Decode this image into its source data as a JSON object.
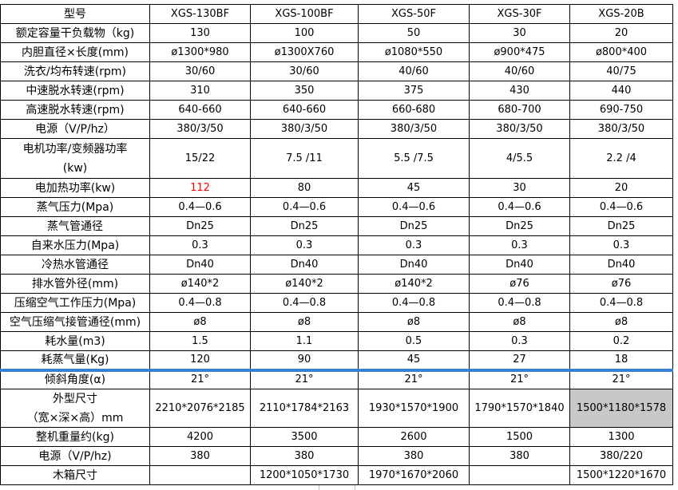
{
  "header": {
    "label": "型号",
    "models": [
      "XGS-130BF",
      "XGS-100BF",
      "XGS-50F",
      "XGS-30F",
      "XGS-20B"
    ]
  },
  "rows": [
    {
      "label": "额定容量干负载物（kg)",
      "values": [
        "130",
        "100",
        "50",
        "30",
        "20"
      ]
    },
    {
      "label": "内胆直径×长度(mm)",
      "values": [
        "ø1300*980",
        "ø1300X760",
        "ø1080*550",
        "ø900*475",
        "ø800*400"
      ]
    },
    {
      "label": "洗衣/均布转速(rpm)",
      "values": [
        "30/60",
        "30/60",
        "40/60",
        "40/60",
        "40/75"
      ]
    },
    {
      "label": "中速脱水转速(rpm)",
      "values": [
        "310",
        "350",
        "375",
        "430",
        "440"
      ]
    },
    {
      "label": "高速脱水转速(rpm)",
      "values": [
        "640-660",
        "640-660",
        "660-680",
        "680-700",
        "690-750"
      ]
    },
    {
      "label": "电源（V/P/hz）",
      "values": [
        "380/3/50",
        "380/3/50",
        "380/3/50",
        "380/3/50",
        "380/3/50"
      ]
    },
    {
      "label": "电机功率/变频器功率",
      "label2": "(kw)",
      "values": [
        "15/22",
        "7.5 /11",
        "5.5 /7.5",
        "4/5.5",
        "2.2 /4"
      ]
    },
    {
      "label": "电加热功率(kw)",
      "values": [
        "112",
        "80",
        "45",
        "30",
        "20"
      ]
    },
    {
      "label": "蒸气压力(Mpa)",
      "values": [
        "0.4—0.6",
        "0.4—0.6",
        "0.4—0.6",
        "0.4—0.6",
        "0.4—0.6"
      ]
    },
    {
      "label": "蒸气管通径",
      "values": [
        "Dn25",
        "Dn25",
        "Dn25",
        "Dn25",
        "Dn25"
      ]
    },
    {
      "label": "自来水压力(Mpa)",
      "values": [
        "0.3",
        "0.3",
        "0.3",
        "0.3",
        "0.3"
      ]
    },
    {
      "label": "冷热水管通径",
      "values": [
        "Dn40",
        "Dn40",
        "Dn40",
        "Dn40",
        "Dn40"
      ]
    },
    {
      "label": "排水管外径(mm)",
      "values": [
        "ø140*2",
        "ø140*2",
        "ø140*2",
        "ø76",
        "ø76"
      ]
    },
    {
      "label": "压缩空气工作压力(Mpa)",
      "values": [
        "0.4—0.8",
        "0.4—0.8",
        "0.4—0.8",
        "0.4—0.8",
        "0.4—0.8"
      ]
    },
    {
      "label": "空气压缩气接管通径(mm)",
      "values": [
        "ø8",
        "ø8",
        "ø8",
        "ø8",
        "ø8"
      ]
    },
    {
      "label": "耗水量(m3)",
      "values": [
        "1.5",
        "1.1",
        "0.5",
        "0.3",
        "0.2"
      ]
    },
    {
      "label": "耗蒸气量(Kg)",
      "values": [
        "120",
        "90",
        "45",
        "27",
        "18"
      ]
    },
    {
      "label": "倾斜角度(α)",
      "values": [
        "21°",
        "21°",
        "21°",
        "21°",
        "21°"
      ]
    },
    {
      "label": "外型尺寸",
      "label2": "（宽×深×高）mm",
      "values": [
        "2210*2076*2185",
        "2110*1784*2163",
        "1930*1570*1900",
        "1790*1570*1840",
        "1500*1180*1578"
      ]
    },
    {
      "label": "整机重量约(kg)",
      "values": [
        "4200",
        "3500",
        "2600",
        "1500",
        "1300"
      ]
    },
    {
      "label": "电源（V/P/hz)",
      "values": [
        "380",
        "380",
        "380",
        "380",
        "380/220"
      ]
    },
    {
      "label": "木箱尺寸",
      "values": [
        "",
        "1200*1050*1730",
        "1970*1670*2060",
        "",
        "1500*1220*1670"
      ]
    }
  ],
  "colors": {
    "highlight_text": "#ff0000",
    "separator": "#3a7fd5",
    "highlight_cell": "#c8c8c8"
  }
}
